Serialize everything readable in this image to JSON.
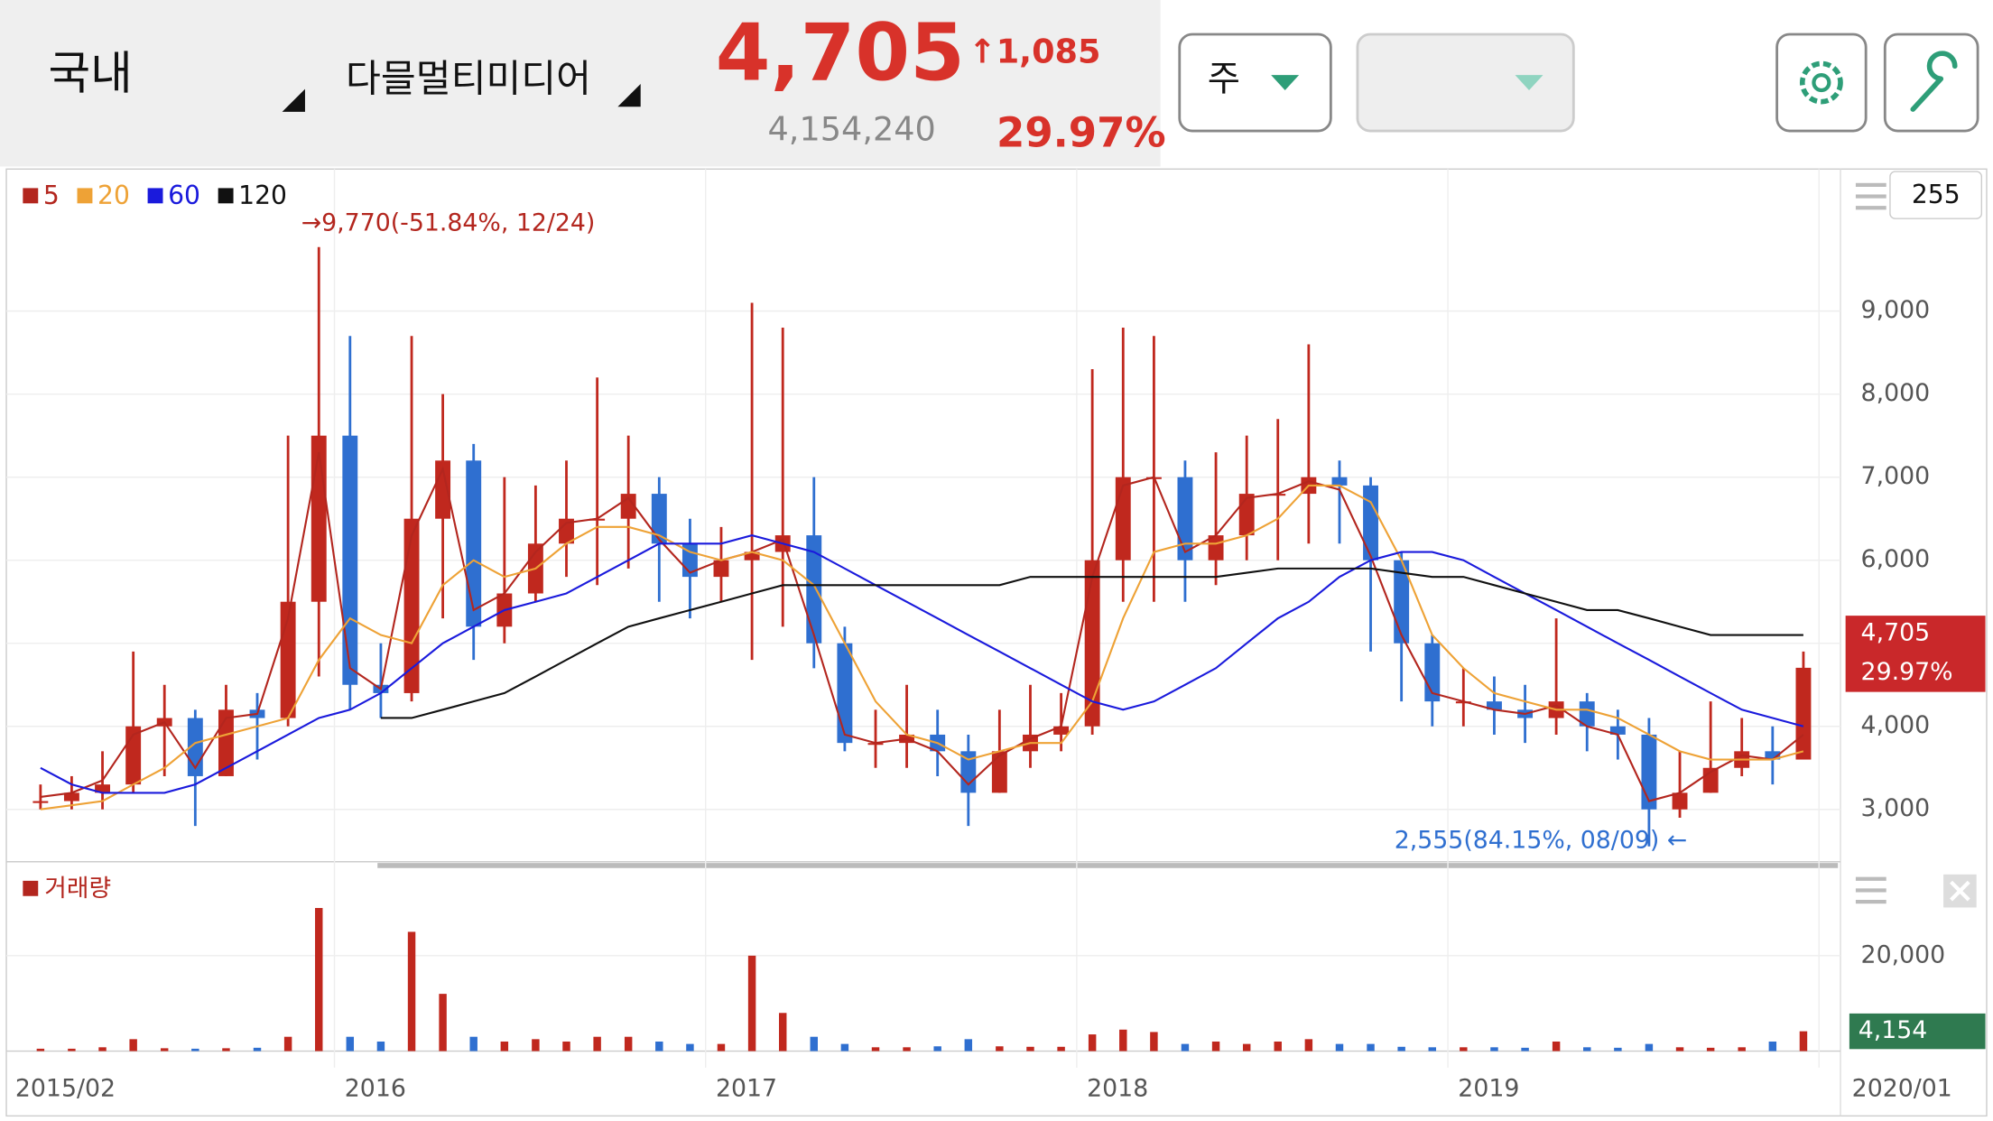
{
  "header": {
    "market": "국내",
    "stock": "다믈멀티미디어",
    "price": "4,705",
    "change": "↑1,085",
    "volume": "4,154,240",
    "rate": "29.97%",
    "period": "주",
    "input": "255"
  },
  "chart_data": [
    {
      "type": "candlestick",
      "up_color": "#c0281e",
      "down_color": "#2f6fd0",
      "x": [
        2015.208,
        2015.292,
        2015.375,
        2015.458,
        2015.542,
        2015.625,
        2015.708,
        2015.792,
        2015.875,
        2015.958,
        2016.042,
        2016.125,
        2016.208,
        2016.292,
        2016.375,
        2016.458,
        2016.542,
        2016.625,
        2016.708,
        2016.792,
        2016.875,
        2016.958,
        2017.042,
        2017.125,
        2017.208,
        2017.292,
        2017.375,
        2017.458,
        2017.542,
        2017.625,
        2017.708,
        2017.792,
        2017.875,
        2017.958,
        2018.042,
        2018.125,
        2018.208,
        2018.292,
        2018.375,
        2018.458,
        2018.542,
        2018.625,
        2018.708,
        2018.792,
        2018.875,
        2018.958,
        2019.042,
        2019.125,
        2019.208,
        2019.292,
        2019.375,
        2019.458,
        2019.542,
        2019.625,
        2019.708,
        2019.792,
        2019.875,
        2019.958
      ],
      "values": [
        3100,
        3200,
        3300,
        4000,
        4100,
        3400,
        4200,
        4100,
        5500,
        7500,
        4500,
        4400,
        6500,
        7200,
        5200,
        5600,
        6200,
        6500,
        6500,
        6800,
        6200,
        5800,
        6000,
        6100,
        6300,
        5000,
        3800,
        3800,
        3900,
        3700,
        3200,
        3700,
        3900,
        4000,
        6000,
        7000,
        7000,
        6000,
        6300,
        6800,
        6800,
        7000,
        6900,
        6000,
        5000,
        4300,
        4300,
        4200,
        4100,
        4300,
        4000,
        3900,
        3000,
        3200,
        3500,
        3700,
        3600,
        4705
      ],
      "high": [
        3300,
        3400,
        3700,
        4900,
        4500,
        4200,
        4500,
        4400,
        7500,
        9770,
        8700,
        5000,
        8700,
        8000,
        7400,
        7000,
        6900,
        7200,
        8200,
        7500,
        7000,
        6500,
        6400,
        9100,
        8800,
        7000,
        5200,
        4200,
        4500,
        4200,
        3900,
        4200,
        4500,
        4400,
        8300,
        8800,
        8700,
        7200,
        7300,
        7500,
        7700,
        8600,
        7200,
        7000,
        6100,
        5100,
        4700,
        4600,
        4500,
        5300,
        4400,
        4200,
        4100,
        3700,
        4300,
        4100,
        4000,
        4900
      ],
      "low": [
        3000,
        3000,
        3000,
        3200,
        3400,
        2800,
        3400,
        3600,
        4000,
        4600,
        4200,
        4100,
        4300,
        5300,
        4800,
        5000,
        5500,
        5800,
        5700,
        5900,
        5500,
        5300,
        5500,
        4800,
        5200,
        4700,
        3700,
        3500,
        3500,
        3400,
        2800,
        3200,
        3500,
        3700,
        3900,
        5500,
        5500,
        5500,
        5700,
        6000,
        6000,
        6200,
        6200,
        4900,
        4300,
        4000,
        4000,
        3900,
        3800,
        3900,
        3700,
        3600,
        2555,
        2900,
        3200,
        3400,
        3300,
        3600
      ],
      "series": [
        {
          "name": "5",
          "color": "#b3261e",
          "values": [
            3150,
            3200,
            3350,
            3900,
            4050,
            3500,
            4100,
            4150,
            5300,
            7300,
            4700,
            4450,
            6300,
            7100,
            5400,
            5600,
            6100,
            6450,
            6500,
            6750,
            6250,
            5850,
            6000,
            6100,
            6250,
            5100,
            3900,
            3800,
            3850,
            3700,
            3300,
            3650,
            3850,
            4000,
            5800,
            6900,
            7000,
            6100,
            6300,
            6750,
            6800,
            6950,
            6850,
            6050,
            5100,
            4400,
            4300,
            4200,
            4150,
            4250,
            4000,
            3900,
            3100,
            3200,
            3450,
            3650,
            3600,
            3900
          ]
        },
        {
          "name": "20",
          "color": "#eea236",
          "values": [
            3000,
            3050,
            3100,
            3300,
            3500,
            3800,
            3900,
            4000,
            4100,
            4800,
            5300,
            5100,
            5000,
            5700,
            6000,
            5800,
            5900,
            6200,
            6400,
            6400,
            6300,
            6100,
            6000,
            6100,
            6000,
            5700,
            5000,
            4300,
            3900,
            3800,
            3600,
            3700,
            3800,
            3800,
            4300,
            5300,
            6100,
            6200,
            6200,
            6300,
            6500,
            6900,
            6900,
            6700,
            6000,
            5100,
            4700,
            4400,
            4300,
            4200,
            4200,
            4100,
            3900,
            3700,
            3600,
            3600,
            3600,
            3700
          ]
        },
        {
          "name": "60",
          "color": "#1a1adc",
          "values": [
            3500,
            3300,
            3200,
            3200,
            3200,
            3300,
            3500,
            3700,
            3900,
            4100,
            4200,
            4400,
            4700,
            5000,
            5200,
            5400,
            5500,
            5600,
            5800,
            6000,
            6200,
            6200,
            6200,
            6300,
            6200,
            6100,
            5900,
            5700,
            5500,
            5300,
            5100,
            4900,
            4700,
            4500,
            4300,
            4200,
            4300,
            4500,
            4700,
            5000,
            5300,
            5500,
            5800,
            6000,
            6100,
            6100,
            6000,
            5800,
            5600,
            5400,
            5200,
            5000,
            4800,
            4600,
            4400,
            4200,
            4100,
            4000
          ]
        },
        {
          "name": "120",
          "color": "#111111",
          "values": [
            null,
            null,
            null,
            null,
            null,
            null,
            null,
            null,
            null,
            null,
            null,
            4100,
            4100,
            4200,
            4300,
            4400,
            4600,
            4800,
            5000,
            5200,
            5300,
            5400,
            5500,
            5600,
            5700,
            5700,
            5700,
            5700,
            5700,
            5700,
            5700,
            5700,
            5800,
            5800,
            5800,
            5800,
            5800,
            5800,
            5800,
            5850,
            5900,
            5900,
            5900,
            5900,
            5850,
            5800,
            5800,
            5700,
            5600,
            5500,
            5400,
            5400,
            5300,
            5200,
            5100,
            5100,
            5100,
            5100
          ]
        }
      ],
      "xlim": [
        2015.116,
        2020.051
      ],
      "xticks": [
        {
          "value": 2015.083,
          "label": "2015/02"
        },
        2016,
        2017,
        2018,
        2019,
        {
          "value": 2020,
          "label": "2020/01"
        }
      ],
      "ylim": [
        2370,
        10710
      ],
      "yticks": [
        {
          "value": 3000,
          "label": "3,000"
        },
        {
          "value": 4000,
          "label": "4,000"
        },
        {
          "value": 5000,
          "label": ""
        },
        {
          "value": 6000,
          "label": "6,000"
        },
        {
          "value": 7000,
          "label": "7,000"
        },
        {
          "value": 8000,
          "label": "8,000"
        },
        {
          "value": 9000,
          "label": "9,000"
        }
      ],
      "annotations": [
        "→9,770(-51.84%, 12/24)",
        "2,555(84.15%, 08/09)  ←"
      ],
      "grid": true
    },
    {
      "type": "bar",
      "title": "거래량",
      "color": "#b3261e",
      "values": [
        500,
        500,
        800,
        2500,
        600,
        500,
        600,
        700,
        3000,
        30000,
        3000,
        2000,
        25000,
        12000,
        3000,
        2000,
        2500,
        2000,
        3000,
        3000,
        2000,
        1500,
        1500,
        20000,
        8000,
        3000,
        1500,
        800,
        800,
        1000,
        2500,
        1000,
        900,
        900,
        3500,
        4500,
        4000,
        1500,
        2000,
        1500,
        2000,
        2500,
        1500,
        1500,
        900,
        800,
        800,
        800,
        700,
        2000,
        800,
        700,
        1500,
        800,
        700,
        800,
        2000,
        4154
      ],
      "ylim": [
        0,
        36500
      ],
      "yticks": [
        {
          "value": 20000,
          "label": "20,000"
        }
      ],
      "last_label": "4,154"
    }
  ]
}
